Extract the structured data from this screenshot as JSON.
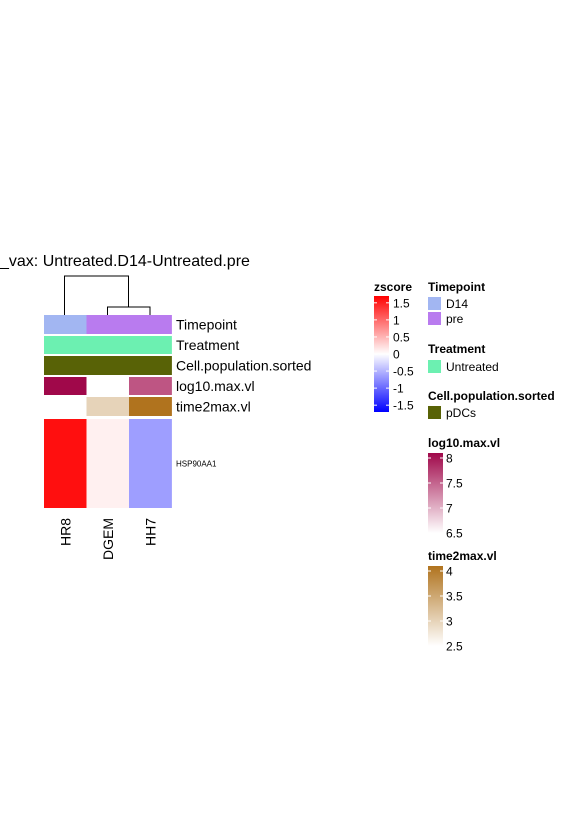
{
  "chart_data": {
    "type": "heatmap",
    "title": "_vax: Untreated.D14-Untreated.pre",
    "columns": [
      "HR8",
      "DGEM",
      "HH7"
    ],
    "rows": [
      "HSP90AA1"
    ],
    "values": [
      [
        1.6,
        0.1,
        -0.65
      ]
    ],
    "annotations": [
      {
        "name": "Timepoint",
        "values": [
          "D14",
          "pre",
          "pre"
        ]
      },
      {
        "name": "Treatment",
        "values": [
          "Untreated",
          "Untreated",
          "Untreated"
        ]
      },
      {
        "name": "Cell.population.sorted",
        "values": [
          "pDCs",
          "pDCs",
          "pDCs"
        ]
      },
      {
        "name": "log10.max.vl",
        "values": [
          8.1,
          null,
          7.6
        ]
      },
      {
        "name": "time2max.vl",
        "values": [
          null,
          3.0,
          4.1
        ]
      }
    ],
    "dendrogram": {
      "type": "column",
      "merges": [
        [
          "DGEM",
          "HH7"
        ],
        [
          "HR8",
          "DGEM+HH7"
        ]
      ]
    },
    "legends": {
      "zscore": {
        "title": "zscore",
        "ticks": [
          "1.5",
          "1",
          "0.5",
          "0",
          "-0.5",
          "-1",
          "-1.5"
        ],
        "range": [
          -1.7,
          1.7
        ],
        "colors": {
          "low": "#0000ff",
          "mid": "#ffffff",
          "high": "#ff0000"
        }
      },
      "timepoint": {
        "title": "Timepoint",
        "items": [
          {
            "label": "D14",
            "color": "#a2b6f2"
          },
          {
            "label": "pre",
            "color": "#b97bef"
          }
        ]
      },
      "treatment": {
        "title": "Treatment",
        "items": [
          {
            "label": "Untreated",
            "color": "#6cf0b1"
          }
        ]
      },
      "cell_population": {
        "title": "Cell.population.sorted",
        "items": [
          {
            "label": "pDCs",
            "color": "#586206"
          }
        ]
      },
      "log10_max_vl": {
        "title": "log10.max.vl",
        "ticks": [
          "8",
          "7.5",
          "7",
          "6.5"
        ],
        "range": [
          6.5,
          8.1
        ],
        "colors": {
          "low": "#ffffff",
          "high": "#a0084a"
        }
      },
      "time2max_vl": {
        "title": "time2max.vl",
        "ticks": [
          "4",
          "3.5",
          "3",
          "2.5"
        ],
        "range": [
          2.5,
          4.1
        ],
        "colors": {
          "low": "#ffffff",
          "high": "#b0731e"
        }
      }
    }
  }
}
